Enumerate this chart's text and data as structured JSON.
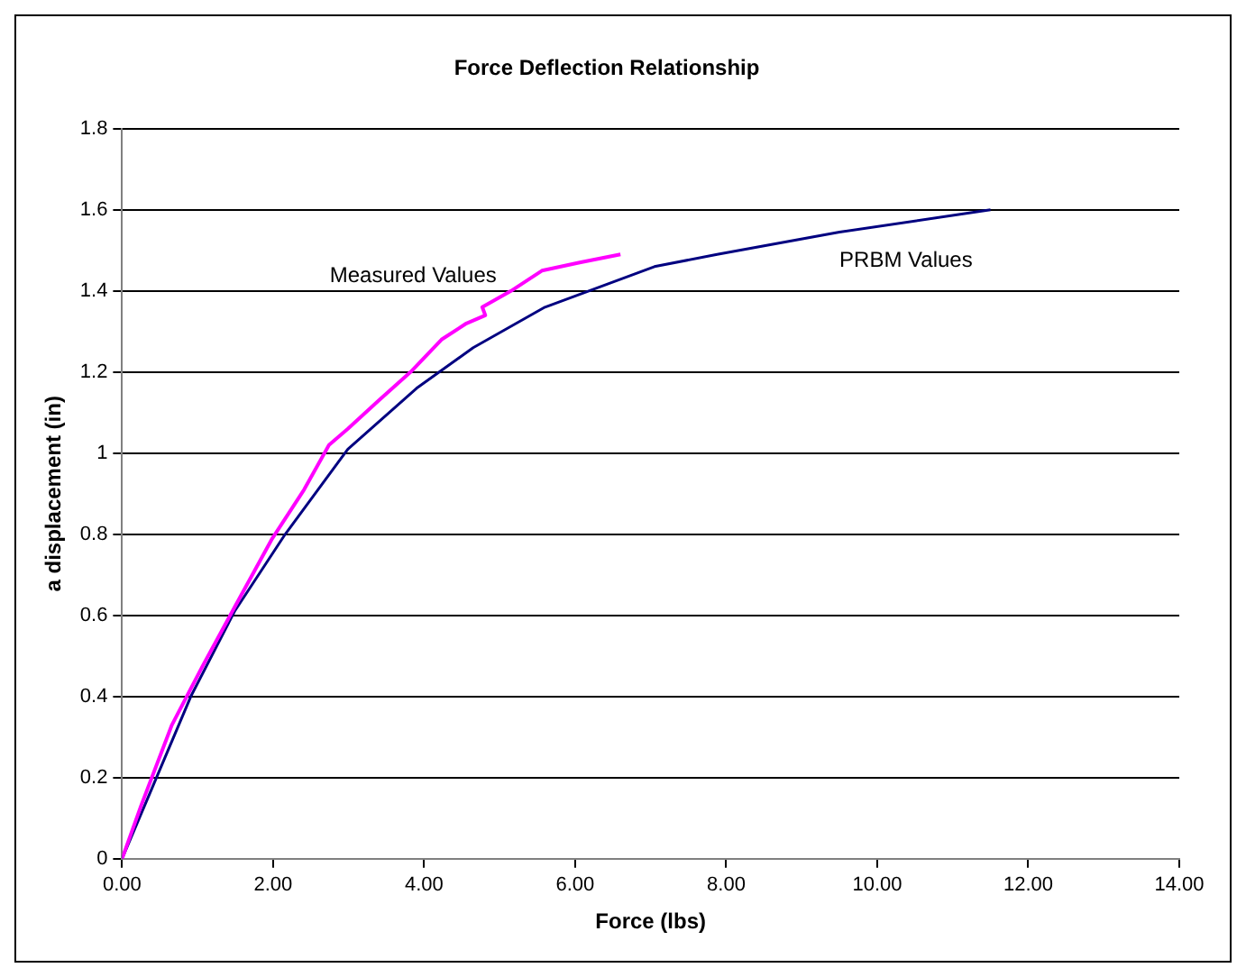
{
  "chart_data": {
    "type": "line",
    "title": "Force Deflection Relationship",
    "xlabel": "Force (lbs)",
    "ylabel": "a displacement (in)",
    "series": [
      {
        "name": "Measured Values",
        "color": "#ff00ff",
        "x": [
          0,
          0.25,
          0.66,
          1.08,
          1.49,
          1.99,
          2.41,
          2.74,
          2.99,
          3.4,
          3.82,
          4.23,
          4.56,
          4.81,
          4.77,
          5.15,
          5.56,
          6.06,
          6.6
        ],
        "values": [
          0,
          0.13,
          0.33,
          0.48,
          0.62,
          0.79,
          0.91,
          1.02,
          1.06,
          1.13,
          1.2,
          1.28,
          1.32,
          1.34,
          1.36,
          1.4,
          1.45,
          1.47,
          1.49
        ]
      },
      {
        "name": "PRBM Values",
        "color": "#000080",
        "x": [
          0,
          0.41,
          0.91,
          1.49,
          2.16,
          2.99,
          3.9,
          4.65,
          5.6,
          7.05,
          7.88,
          9.5,
          11.5
        ],
        "values": [
          0,
          0.18,
          0.4,
          0.61,
          0.8,
          1.01,
          1.16,
          1.26,
          1.36,
          1.46,
          1.49,
          1.545,
          1.6
        ]
      }
    ],
    "xlim": [
      0,
      14
    ],
    "xticks": [
      {
        "value": 0,
        "label": "0.00"
      },
      {
        "value": 2,
        "label": "2.00"
      },
      {
        "value": 4,
        "label": "4.00"
      },
      {
        "value": 6,
        "label": "6.00"
      },
      {
        "value": 8,
        "label": "8.00"
      },
      {
        "value": 10,
        "label": "10.00"
      },
      {
        "value": 12,
        "label": "12.00"
      },
      {
        "value": 14,
        "label": "14.00"
      }
    ],
    "ylim": [
      0,
      1.8
    ],
    "yticks": [
      0,
      0.2,
      0.4,
      0.6,
      0.8,
      1,
      1.2,
      1.4,
      1.6,
      1.8
    ],
    "grid": "y",
    "legend": false,
    "marker": "none",
    "line_style": "solid"
  }
}
